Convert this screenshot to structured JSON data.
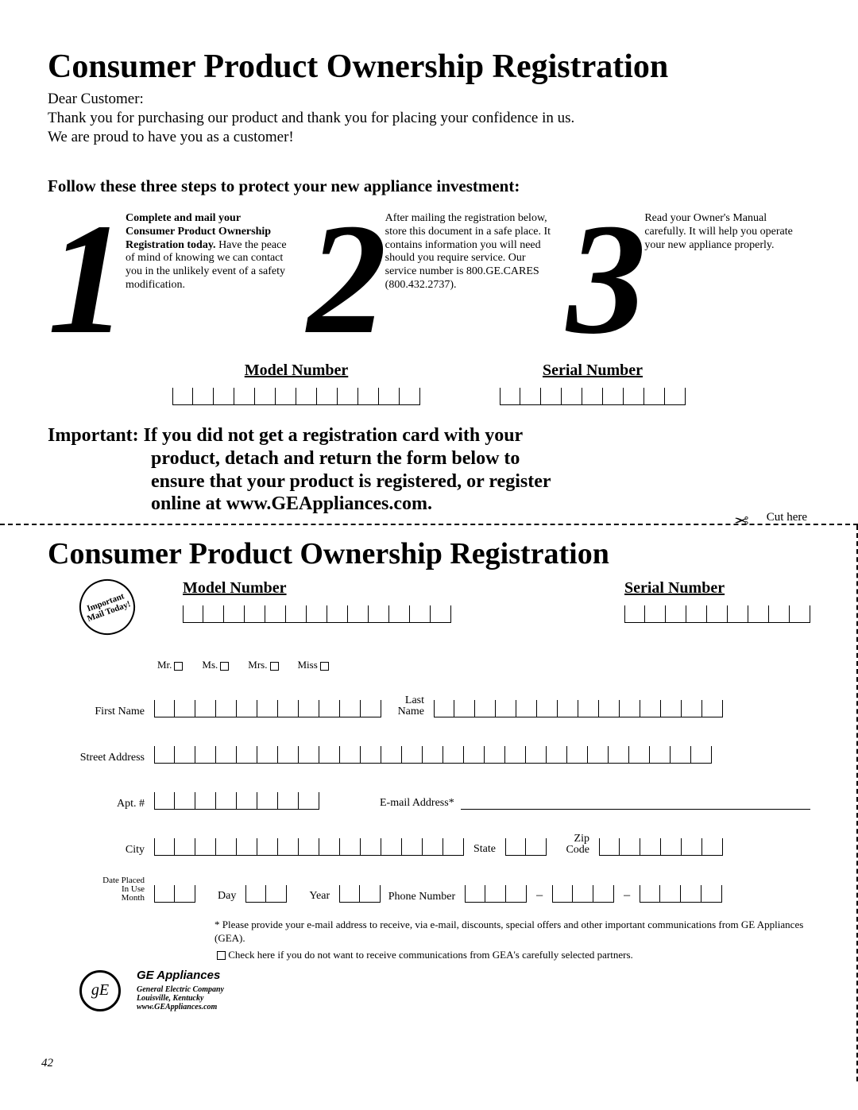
{
  "title": "Consumer Product Ownership Registration",
  "salutation": "Dear Customer:",
  "intro1": "Thank you for purchasing our product and thank you for placing your confidence in us.",
  "intro2": "We are proud to have you as a customer!",
  "follow": "Follow these three steps to protect your new appliance investment:",
  "steps": [
    {
      "num": "1",
      "bold": "Complete and mail your Consumer Product Ownership Registration today.",
      "text": "Have the peace of mind of knowing we can contact you in the unlikely event of a safety modification."
    },
    {
      "num": "2",
      "bold": "",
      "text": "After mailing the registration below, store this document in a safe place. It contains information you will need should you require service. Our service number is 800.GE.CARES (800.432.2737)."
    },
    {
      "num": "3",
      "bold": "",
      "text": "Read your Owner's Manual carefully. It will help you operate your new appliance properly."
    }
  ],
  "model_label": "Model Number",
  "serial_label": "Serial Number",
  "model_box_count": 12,
  "serial_box_count": 9,
  "important": {
    "prefix": "Important:",
    "line1": "If you did not get a registration card with your",
    "line2": "product, detach and return the form below to",
    "line3": "ensure that your product is registered, or register",
    "line4": "online at www.GEAppliances.com."
  },
  "cut_here": "Cut here",
  "form_title": "Consumer Product Ownership Registration",
  "stamp": "Important Mail Today!",
  "form_model_box_count": 13,
  "form_serial_box_count": 9,
  "salutations": [
    "Mr.",
    "Ms.",
    "Mrs.",
    "Miss"
  ],
  "labels": {
    "first_name": "First Name",
    "last_name": "Last Name",
    "street": "Street Address",
    "apt": "Apt. #",
    "email": "E-mail Address*",
    "city": "City",
    "state": "State",
    "zip": "Zip Code",
    "date1": "Date Placed",
    "date2": "In Use",
    "month": "Month",
    "day": "Day",
    "year": "Year",
    "phone": "Phone Number"
  },
  "first_name_boxes": 11,
  "last_name_boxes": 14,
  "street_boxes": 27,
  "apt_boxes": 8,
  "city_boxes": 15,
  "state_boxes": 2,
  "zip_boxes": 6,
  "month_boxes": 2,
  "day_boxes": 2,
  "year_boxes": 2,
  "phone_a": 3,
  "phone_b": 3,
  "phone_c": 4,
  "footnote1": "* Please provide your e-mail address to receive, via e-mail, discounts, special offers and other important communications from GE Appliances (GEA).",
  "footnote2": "Check here if you do not want to receive communications from GEA's carefully selected partners.",
  "brand": "GE Appliances",
  "logo_text": "gE",
  "company1": "General Electric Company",
  "company2": "Louisville, Kentucky",
  "company3": "www.GEAppliances.com",
  "page_num": "42",
  "dash": "–"
}
